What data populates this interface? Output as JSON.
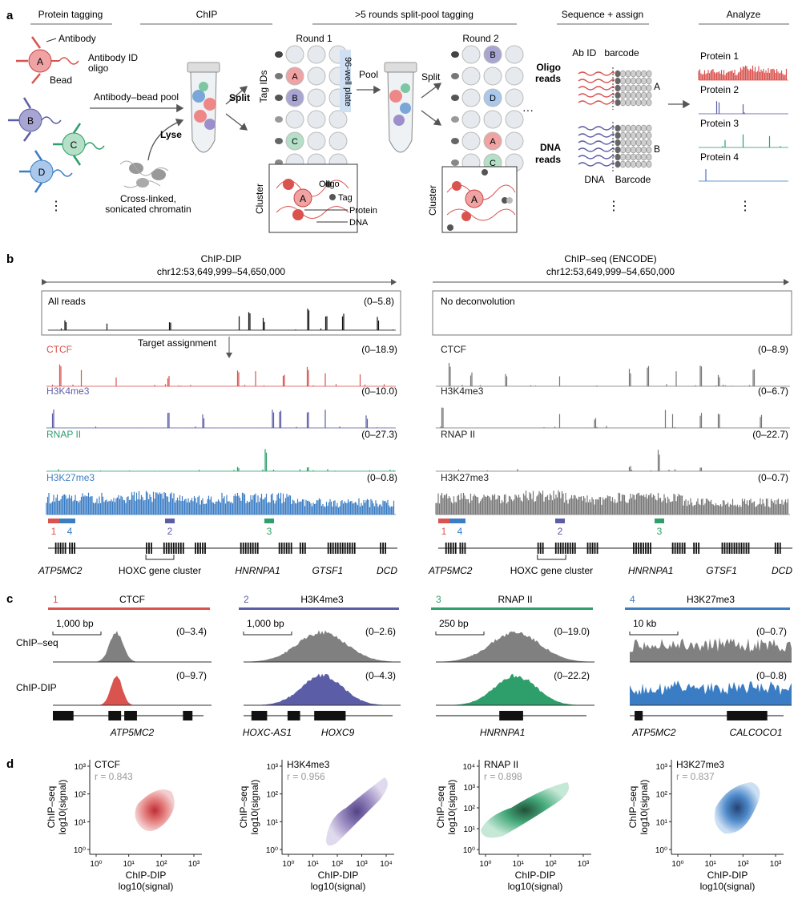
{
  "panel_a": {
    "label": "a",
    "stages": [
      "Protein tagging",
      "ChIP",
      ">5 rounds split-pool tagging",
      "Sequence + assign",
      "Analyze"
    ],
    "antibody": "Antibody",
    "antibody_id_oligo_1": "Antibody ID",
    "antibody_id_oligo_2": "oligo",
    "bead": "Bead",
    "antibody_bead_pool": "Antibody–bead pool",
    "lyse": "Lyse",
    "chromatin_1": "Cross-linked,",
    "chromatin_2": "sonicated chromatin",
    "split_1": "Split",
    "pool": "Pool",
    "split_2": "Split",
    "round1": "Round 1",
    "round2": "Round 2",
    "tag_ids": "Tag IDs",
    "plate": "96-well plate",
    "cluster_1": "Cluster",
    "cluster_2": "Cluster",
    "oligo": "Oligo",
    "tag": "Tag",
    "protein": "Protein",
    "dna": "DNA",
    "ab_id": "Ab ID",
    "barcode": "barcode",
    "oligo_reads_1": "Oligo",
    "oligo_reads_2": "reads",
    "dna_reads_1": "DNA",
    "dna_reads_2": "reads",
    "read_a": "A",
    "read_b": "B",
    "dna_label": "DNA",
    "barcode_label": "Barcode",
    "proteins": [
      "Protein 1",
      "Protein 2",
      "Protein 3",
      "Protein 4"
    ],
    "bead_letters": [
      "A",
      "B",
      "C",
      "D"
    ],
    "ellipsis": "⋮",
    "dots": "···"
  },
  "panel_b": {
    "label": "b",
    "left_title": "ChIP-DIP",
    "left_coords": "chr12:53,649,999–54,650,000",
    "right_title": "ChIP–seq (ENCODE)",
    "right_coords": "chr12:53,649,999–54,650,000",
    "all_reads": "All reads",
    "all_reads_range": "(0–5.8)",
    "no_deconvolution": "No deconvolution",
    "target_assignment": "Target assignment",
    "left_tracks": [
      {
        "name": "CTCF",
        "range": "(0–18.9)",
        "color": "#d9534f"
      },
      {
        "name": "H3K4me3",
        "range": "(0–10.0)",
        "color": "#5b5ea6"
      },
      {
        "name": "RNAP II",
        "range": "(0–27.3)",
        "color": "#2e9e6b"
      },
      {
        "name": "H3K27me3",
        "range": "(0–0.8)",
        "color": "#3b7dc4"
      }
    ],
    "right_tracks": [
      {
        "name": "CTCF",
        "range": "(0–8.9)"
      },
      {
        "name": "H3K4me3",
        "range": "(0–6.7)"
      },
      {
        "name": "RNAP II",
        "range": "(0–22.7)"
      },
      {
        "name": "H3K27me3",
        "range": "(0–0.7)"
      }
    ],
    "regions": [
      "1",
      "4",
      "2",
      "3"
    ],
    "genes": [
      "ATP5MC2",
      "HOXC gene cluster",
      "HNRNPA1",
      "GTSF1",
      "DCD"
    ]
  },
  "panel_c": {
    "label": "c",
    "panels": [
      {
        "num": "1",
        "title": "CTCF",
        "color": "#d9534f",
        "scale": "1,000 bp",
        "seq_range": "(0–3.4)",
        "dip_range": "(0–9.7)",
        "genes": [
          "ATP5MC2"
        ]
      },
      {
        "num": "2",
        "title": "H3K4me3",
        "color": "#5b5ea6",
        "scale": "1,000 bp",
        "seq_range": "(0–2.6)",
        "dip_range": "(0–4.3)",
        "genes": [
          "HOXC-AS1",
          "HOXC9"
        ]
      },
      {
        "num": "3",
        "title": "RNAP II",
        "color": "#2e9e6b",
        "scale": "250 bp",
        "seq_range": "(0–19.0)",
        "dip_range": "(0–22.2)",
        "genes": [
          "HNRNPA1"
        ]
      },
      {
        "num": "4",
        "title": "H3K27me3",
        "color": "#3b7dc4",
        "scale": "10 kb",
        "seq_range": "(0–0.7)",
        "dip_range": "(0–0.8)",
        "genes": [
          "ATP5MC2",
          "CALCOCO1"
        ]
      }
    ],
    "chip_seq": "ChIP–seq",
    "chip_dip": "ChIP-DIP"
  },
  "panel_d": {
    "label": "d",
    "ylabel_1": "ChIP–seq",
    "ylabel_2": "log10(signal)",
    "xlabel_1": "ChIP-DIP",
    "xlabel_2": "log10(signal)",
    "plots": [
      {
        "title": "CTCF",
        "r": "r = 0.843",
        "color": "#d9534f",
        "yticks": [
          "10⁰",
          "10¹",
          "10²",
          "10³"
        ],
        "xticks": [
          "10⁰",
          "10¹",
          "10²",
          "10³"
        ]
      },
      {
        "title": "H3K4me3",
        "r": "r = 0.956",
        "color": "#7b5ea6",
        "yticks": [
          "10⁰",
          "10¹",
          "10²",
          "10³"
        ],
        "xticks": [
          "10⁰",
          "10¹",
          "10²",
          "10³",
          "10⁴"
        ]
      },
      {
        "title": "RNAP II",
        "r": "r = 0.898",
        "color": "#2e9e6b",
        "yticks": [
          "10⁰",
          "10¹",
          "10²",
          "10³",
          "10⁴"
        ],
        "xticks": [
          "10⁰",
          "10¹",
          "10²",
          "10³"
        ]
      },
      {
        "title": "H3K27me3",
        "r": "r = 0.837",
        "color": "#3b7dc4",
        "yticks": [
          "10⁰",
          "10¹",
          "10²",
          "10³"
        ],
        "xticks": [
          "10⁰",
          "10¹",
          "10²",
          "10³"
        ]
      }
    ]
  }
}
